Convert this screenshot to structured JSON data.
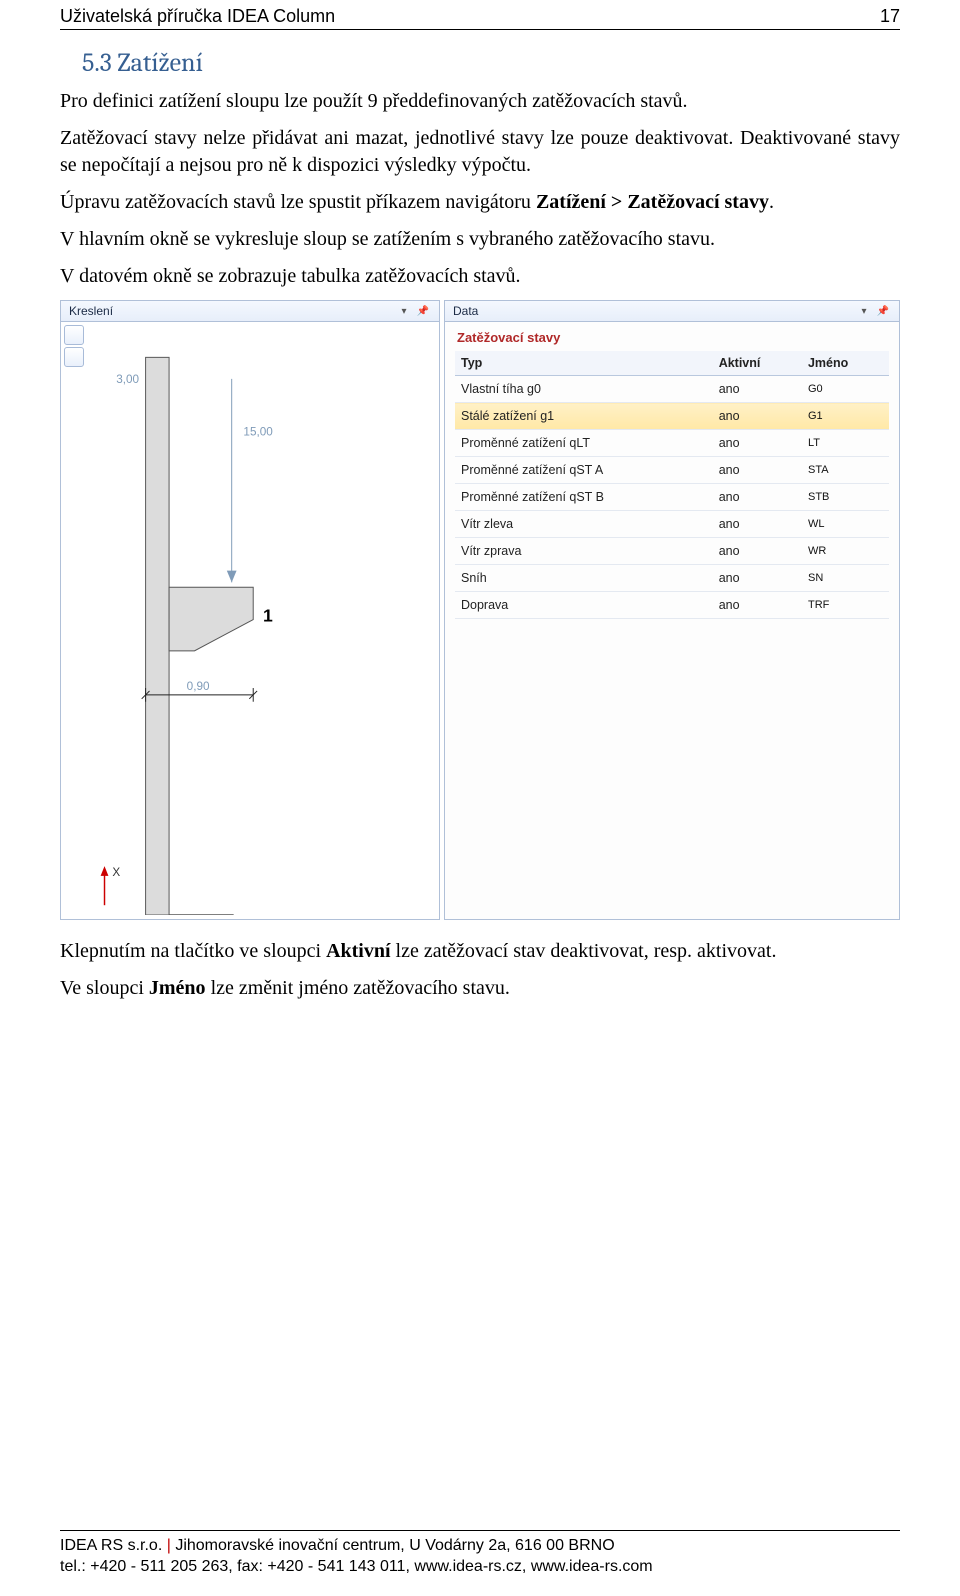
{
  "header": {
    "title": "Uživatelská příručka IDEA Column",
    "page_number": "17"
  },
  "section": {
    "heading": "5.3 Zatížení"
  },
  "paragraphs": {
    "p1": "Pro definici zatížení sloupu lze použít 9 předdefinovaných zatěžovacích stavů.",
    "p2a": "Zatěžovací stavy nelze přidávat ani mazat, jednotlivé stavy lze pouze deaktivovat. Deaktivované stavy se nepočítají a nejsou pro ně k dispozici výsledky výpočtu.",
    "p2b_prefix": "Úpravu zatěžovacích stavů lze spustit příkazem navigátoru ",
    "p2b_bold": "Zatížení > Zatěžovací stavy",
    "p2b_suffix": ".",
    "p3": "V hlavním okně se vykresluje sloup se zatížením s vybraného zatěžovacího stavu.",
    "p4": "V datovém okně se zobrazuje tabulka zatěžovacích stavů."
  },
  "screenshot": {
    "left": {
      "title": "Kreslení",
      "dim_left": "3,00",
      "dim_top": "15,00",
      "dim_bottom": "0,90",
      "marker": "1",
      "axis_label": "X"
    },
    "right": {
      "title": "Data",
      "group": "Zatěžovací stavy",
      "columns": [
        "Typ",
        "Aktivní",
        "Jméno"
      ],
      "rows": [
        {
          "typ": "Vlastní tíha g0",
          "aktivni": "ano",
          "jmeno": "G0",
          "selected": false
        },
        {
          "typ": "Stálé zatížení g1",
          "aktivni": "ano",
          "jmeno": "G1",
          "selected": true
        },
        {
          "typ": "Proměnné zatížení qLT",
          "aktivni": "ano",
          "jmeno": "LT",
          "selected": false
        },
        {
          "typ": "Proměnné zatížení qST A",
          "aktivni": "ano",
          "jmeno": "STA",
          "selected": false
        },
        {
          "typ": "Proměnné zatížení qST B",
          "aktivni": "ano",
          "jmeno": "STB",
          "selected": false
        },
        {
          "typ": "Vítr zleva",
          "aktivni": "ano",
          "jmeno": "WL",
          "selected": false
        },
        {
          "typ": "Vítr zprava",
          "aktivni": "ano",
          "jmeno": "WR",
          "selected": false
        },
        {
          "typ": "Sníh",
          "aktivni": "ano",
          "jmeno": "SN",
          "selected": false
        },
        {
          "typ": "Doprava",
          "aktivni": "ano",
          "jmeno": "TRF",
          "selected": false
        }
      ]
    }
  },
  "after": {
    "p5_prefix": "Klepnutím na tlačítko ve sloupci ",
    "p5_bold": "Aktivní",
    "p5_suffix": " lze zatěžovací stav deaktivovat, resp. aktivovat.",
    "p6_prefix": "Ve sloupci ",
    "p6_bold": "Jméno",
    "p6_suffix": " lze změnit jméno zatěžovacího stavu."
  },
  "footer": {
    "line1_brand": "IDEA RS s.r.o.",
    "line1_sep": " | ",
    "line1_rest": "Jihomoravské inovační centrum, U Vodárny 2a, 616 00 BRNO",
    "line2": "tel.: +420 - 511 205 263, fax: +420 - 541 143 011, www.idea-rs.cz, www.idea-rs.com"
  },
  "style": {
    "heading_color": "#365f91",
    "group_title_color": "#b02828",
    "selected_row_bg_top": "#fff1c7",
    "selected_row_bg_bottom": "#ffe8a6",
    "panel_border": "#b0c0d8",
    "dim_text_color": "#7f9bb8"
  }
}
